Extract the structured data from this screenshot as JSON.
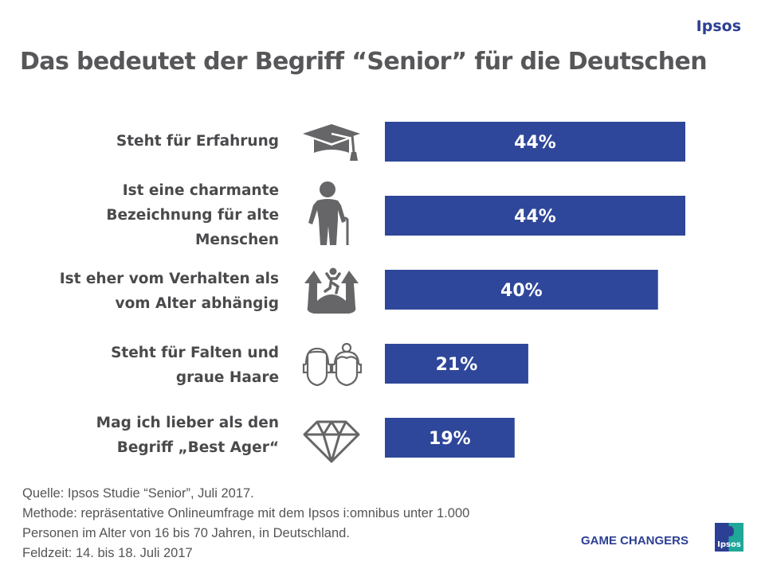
{
  "header": {
    "brand": "Ipsos",
    "title": "Das bedeutet der Begriff “Senior” für die Deutschen"
  },
  "chart_data": {
    "type": "bar",
    "orientation": "horizontal",
    "title": "Das bedeutet der Begriff “Senior” für die Deutschen",
    "xlabel": "",
    "ylabel": "",
    "xlim": [
      0,
      50
    ],
    "grid": false,
    "legend": "none",
    "bar_color": "#2f479a",
    "categories": [
      "Steht für Erfahrung",
      "Ist eine charmante Bezeichnung für alte Menschen",
      "Ist eher vom Verhalten als vom Alter abhängig",
      "Steht für Falten und graue Haare",
      "Mag ich lieber als den Begriff „Best Ager“"
    ],
    "label_lines": [
      [
        "Steht für Erfahrung"
      ],
      [
        "Ist eine charmante",
        "Bezeichnung für alte",
        "Menschen"
      ],
      [
        "Ist eher vom Verhalten als",
        "vom Alter abhängig"
      ],
      [
        "Steht für Falten und",
        "graue Haare"
      ],
      [
        "Mag ich lieber als den",
        "Begriff „Best Ager“"
      ]
    ],
    "icons": [
      "graduation-cap-icon",
      "elderly-person-with-cane-icon",
      "jumping-person-on-hands-icon",
      "elderly-couple-heads-icon",
      "diamond-icon"
    ],
    "values": [
      44,
      44,
      40,
      21,
      19
    ],
    "value_labels": [
      "44%",
      "44%",
      "40%",
      "21%",
      "19%"
    ],
    "unit": "%"
  },
  "footnote": {
    "lines": [
      "Quelle: Ipsos Studie “Senior”, Juli 2017.",
      "Methode:  repräsentative Onlineumfrage mit dem Ipsos i:omnibus unter 1.000",
      "Personen im Alter von 16 bis 70 Jahren, in Deutschland.",
      "Feldzeit: 14. bis 18. Juli 2017"
    ]
  },
  "footer": {
    "tagline": "GAME CHANGERS",
    "logo_text": "Ipsos"
  }
}
